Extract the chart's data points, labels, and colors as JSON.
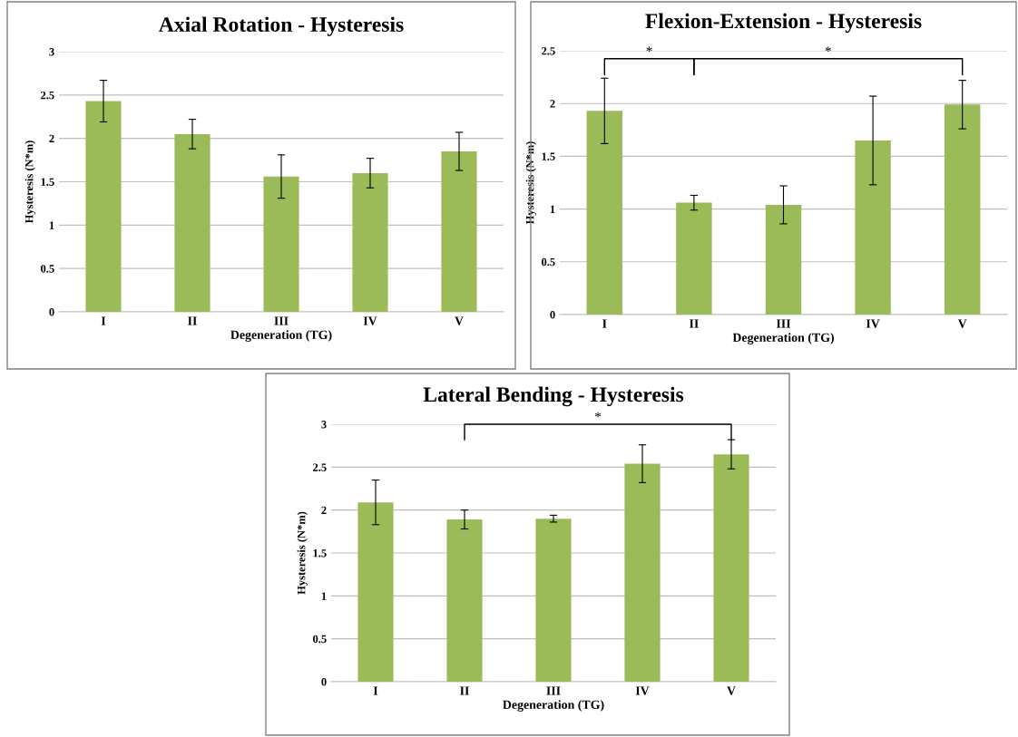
{
  "chart_data": [
    {
      "type": "bar",
      "title": "Axial Rotation - Hysteresis",
      "xlabel": "Degeneration (TG)",
      "ylabel": "Hysteresis (N*m)",
      "categories": [
        "I",
        "II",
        "III",
        "IV",
        "V"
      ],
      "values": [
        2.43,
        2.05,
        1.56,
        1.6,
        1.85
      ],
      "errors": [
        0.24,
        0.17,
        0.25,
        0.17,
        0.22
      ],
      "color": "#9bbb59",
      "ylim": [
        0,
        3
      ],
      "yticks": [
        0,
        0.5,
        1,
        1.5,
        2,
        2.5,
        3
      ],
      "grid": "y"
    },
    {
      "type": "bar",
      "title": "Flexion-Extension - Hysteresis",
      "xlabel": "Degeneration (TG)",
      "ylabel": "Hysteresis (N*m)",
      "categories": [
        "I",
        "II",
        "III",
        "IV",
        "V"
      ],
      "values": [
        1.93,
        1.06,
        1.04,
        1.65,
        1.99
      ],
      "errors": [
        0.31,
        0.07,
        0.18,
        0.42,
        0.23
      ],
      "color": "#9bbb59",
      "ylim": [
        0,
        2.5
      ],
      "yticks": [
        0,
        0.5,
        1,
        1.5,
        2,
        2.5
      ],
      "grid": "y",
      "annotations": [
        "*",
        "*"
      ]
    },
    {
      "type": "bar",
      "title": "Lateral Bending - Hysteresis",
      "xlabel": "Degeneration (TG)",
      "ylabel": "Hysteresis (N*m)",
      "categories": [
        "I",
        "II",
        "III",
        "IV",
        "V"
      ],
      "values": [
        2.09,
        1.89,
        1.9,
        2.54,
        2.65
      ],
      "errors": [
        0.26,
        0.11,
        0.04,
        0.22,
        0.17
      ],
      "color": "#9bbb59",
      "ylim": [
        0,
        3
      ],
      "yticks": [
        0,
        0.5,
        1,
        1.5,
        2,
        2.5,
        3
      ],
      "grid": "y",
      "annotations": [
        "*"
      ]
    }
  ]
}
